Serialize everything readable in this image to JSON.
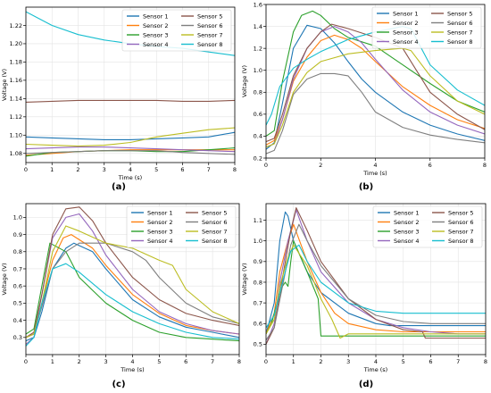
{
  "colors": [
    "#1f77b4",
    "#ff7f0e",
    "#2ca02c",
    "#9467bd",
    "#8c564b",
    "#7f7f7f",
    "#bcbd22",
    "#17becf"
  ],
  "chart_data": [
    {
      "type": "line",
      "panel_label": "(a)",
      "xlabel": "Time (s)",
      "ylabel": "Voltage (V)",
      "xlim": [
        0,
        8
      ],
      "ylim": [
        1.07,
        1.24
      ],
      "xticks": [
        0,
        1,
        2,
        3,
        4,
        5,
        6,
        7,
        8
      ],
      "yticks": [
        1.08,
        1.1,
        1.12,
        1.14,
        1.16,
        1.18,
        1.2,
        1.22
      ],
      "ytick_decimals": 2,
      "grid": true,
      "legend_position": "top-right",
      "series": [
        {
          "name": "Sensor 1",
          "x": [
            0,
            1,
            2,
            3,
            4,
            5,
            6,
            7,
            8
          ],
          "y": [
            1.098,
            1.097,
            1.096,
            1.095,
            1.095,
            1.096,
            1.097,
            1.098,
            1.103
          ]
        },
        {
          "name": "Sensor 2",
          "x": [
            0,
            1,
            2,
            3,
            4,
            5,
            6,
            7,
            8
          ],
          "y": [
            1.078,
            1.08,
            1.082,
            1.083,
            1.084,
            1.084,
            1.084,
            1.084,
            1.084
          ]
        },
        {
          "name": "Sensor 3",
          "x": [
            0,
            1,
            2,
            3,
            4,
            5,
            6,
            7,
            8
          ],
          "y": [
            1.077,
            1.081,
            1.082,
            1.083,
            1.083,
            1.082,
            1.082,
            1.084,
            1.086
          ]
        },
        {
          "name": "Sensor 4",
          "x": [
            0,
            1,
            2,
            3,
            4,
            5,
            6,
            7,
            8
          ],
          "y": [
            1.085,
            1.086,
            1.087,
            1.087,
            1.086,
            1.085,
            1.084,
            1.083,
            1.082
          ]
        },
        {
          "name": "Sensor 5",
          "x": [
            0,
            1,
            2,
            3,
            4,
            5,
            6,
            7,
            8
          ],
          "y": [
            1.136,
            1.137,
            1.138,
            1.138,
            1.138,
            1.138,
            1.137,
            1.137,
            1.138
          ]
        },
        {
          "name": "Sensor 6",
          "x": [
            0,
            1,
            2,
            3,
            4,
            5,
            6,
            7,
            8
          ],
          "y": [
            1.08,
            1.081,
            1.082,
            1.083,
            1.083,
            1.083,
            1.081,
            1.08,
            1.079
          ]
        },
        {
          "name": "Sensor 7",
          "x": [
            0,
            1,
            2,
            3,
            4,
            5,
            6,
            7,
            8
          ],
          "y": [
            1.09,
            1.089,
            1.088,
            1.089,
            1.092,
            1.098,
            1.102,
            1.106,
            1.108
          ]
        },
        {
          "name": "Sensor 8",
          "x": [
            0,
            1,
            2,
            3,
            4,
            5,
            6,
            7,
            8
          ],
          "y": [
            1.235,
            1.22,
            1.21,
            1.204,
            1.2,
            1.197,
            1.195,
            1.191,
            1.187
          ]
        }
      ]
    },
    {
      "type": "line",
      "panel_label": "(b)",
      "xlabel": "Time (s)",
      "ylabel": "Voltage (V)",
      "xlim": [
        0,
        8
      ],
      "ylim": [
        0.2,
        1.6
      ],
      "xticks": [
        0,
        2,
        4,
        6,
        8
      ],
      "yticks": [
        0.2,
        0.4,
        0.6,
        0.8,
        1.0,
        1.2,
        1.4,
        1.6
      ],
      "ytick_decimals": 1,
      "grid": true,
      "legend_position": "top-right",
      "series": [
        {
          "name": "Sensor 1",
          "x": [
            0,
            0.3,
            0.6,
            1,
            1.5,
            2,
            2.5,
            3,
            3.5,
            4,
            5,
            6,
            7,
            8
          ],
          "y": [
            0.28,
            0.34,
            0.7,
            1.2,
            1.41,
            1.38,
            1.25,
            1.08,
            0.92,
            0.8,
            0.62,
            0.5,
            0.42,
            0.36
          ]
        },
        {
          "name": "Sensor 2",
          "x": [
            0,
            0.3,
            0.6,
            1,
            1.5,
            2,
            2.5,
            3,
            3.5,
            4,
            5,
            6,
            7,
            8
          ],
          "y": [
            0.32,
            0.36,
            0.55,
            0.9,
            1.12,
            1.27,
            1.32,
            1.28,
            1.2,
            1.08,
            0.85,
            0.68,
            0.55,
            0.47
          ]
        },
        {
          "name": "Sensor 3",
          "x": [
            0,
            0.3,
            0.6,
            1,
            1.3,
            1.7,
            2,
            2.5,
            3,
            4,
            5,
            6,
            7,
            8
          ],
          "y": [
            0.4,
            0.45,
            0.9,
            1.35,
            1.5,
            1.54,
            1.5,
            1.38,
            1.3,
            1.22,
            1.05,
            0.88,
            0.72,
            0.62
          ]
        },
        {
          "name": "Sensor 4",
          "x": [
            0,
            0.3,
            0.6,
            1,
            1.5,
            2,
            2.5,
            3,
            3.5,
            4,
            5,
            6,
            7,
            8
          ],
          "y": [
            0.3,
            0.33,
            0.55,
            0.92,
            1.2,
            1.35,
            1.4,
            1.35,
            1.25,
            1.1,
            0.82,
            0.62,
            0.5,
            0.42
          ]
        },
        {
          "name": "Sensor 5",
          "x": [
            0,
            0.3,
            0.6,
            1,
            1.5,
            2,
            2.4,
            3,
            4,
            5,
            5.5,
            6,
            7,
            8
          ],
          "y": [
            0.35,
            0.38,
            0.6,
            0.95,
            1.2,
            1.35,
            1.42,
            1.38,
            1.3,
            1.2,
            1.0,
            0.8,
            0.6,
            0.46
          ]
        },
        {
          "name": "Sensor 6",
          "x": [
            0,
            0.3,
            0.6,
            1,
            1.5,
            2,
            2.5,
            3,
            3.5,
            4,
            5,
            6,
            7,
            8
          ],
          "y": [
            0.24,
            0.27,
            0.45,
            0.78,
            0.92,
            0.97,
            0.97,
            0.95,
            0.8,
            0.62,
            0.48,
            0.41,
            0.37,
            0.34
          ]
        },
        {
          "name": "Sensor 7",
          "x": [
            0,
            0.3,
            0.6,
            1,
            1.5,
            2,
            3,
            4,
            5,
            5.3,
            6,
            7,
            8
          ],
          "y": [
            0.3,
            0.33,
            0.5,
            0.8,
            0.98,
            1.08,
            1.15,
            1.18,
            1.2,
            1.18,
            0.95,
            0.72,
            0.6
          ]
        },
        {
          "name": "Sensor 8",
          "x": [
            0,
            0.2,
            0.5,
            1,
            1.5,
            2,
            3,
            4,
            5,
            5.3,
            6,
            7,
            8
          ],
          "y": [
            0.5,
            0.6,
            0.85,
            1.02,
            1.1,
            1.17,
            1.28,
            1.35,
            1.4,
            1.38,
            1.05,
            0.82,
            0.68
          ]
        }
      ]
    },
    {
      "type": "line",
      "panel_label": "(c)",
      "xlabel": "Time (s)",
      "ylabel": "Voltage (V)",
      "xlim": [
        0,
        8
      ],
      "ylim": [
        0.2,
        1.08
      ],
      "xticks": [
        0,
        1,
        2,
        3,
        4,
        5,
        6,
        7,
        8
      ],
      "yticks": [
        0.3,
        0.4,
        0.5,
        0.6,
        0.7,
        0.8,
        0.9,
        1.0
      ],
      "ytick_decimals": 1,
      "grid": true,
      "legend_position": "top-right",
      "series": [
        {
          "name": "Sensor 1",
          "x": [
            0,
            0.3,
            0.6,
            1,
            1.5,
            1.8,
            2.5,
            3,
            4,
            5,
            6,
            7,
            8
          ],
          "y": [
            0.28,
            0.3,
            0.45,
            0.7,
            0.82,
            0.85,
            0.8,
            0.7,
            0.52,
            0.42,
            0.36,
            0.33,
            0.3
          ]
        },
        {
          "name": "Sensor 2",
          "x": [
            0,
            0.3,
            0.6,
            1,
            1.4,
            1.7,
            2.5,
            3,
            4,
            5,
            6,
            7,
            8
          ],
          "y": [
            0.3,
            0.32,
            0.5,
            0.75,
            0.88,
            0.9,
            0.82,
            0.72,
            0.55,
            0.44,
            0.37,
            0.34,
            0.32
          ]
        },
        {
          "name": "Sensor 3",
          "x": [
            0,
            0.3,
            0.6,
            0.9,
            1.5,
            2,
            3,
            4,
            5,
            6,
            7,
            8
          ],
          "y": [
            0.32,
            0.35,
            0.6,
            0.85,
            0.8,
            0.65,
            0.5,
            0.4,
            0.33,
            0.3,
            0.29,
            0.28
          ]
        },
        {
          "name": "Sensor 4",
          "x": [
            0,
            0.3,
            0.6,
            1,
            1.5,
            2,
            2.5,
            3,
            4,
            5,
            6,
            7,
            8
          ],
          "y": [
            0.26,
            0.3,
            0.55,
            0.88,
            1.0,
            1.02,
            0.92,
            0.78,
            0.58,
            0.45,
            0.38,
            0.34,
            0.32
          ]
        },
        {
          "name": "Sensor 5",
          "x": [
            0,
            0.3,
            0.6,
            1,
            1.5,
            2,
            2.5,
            3,
            4,
            5,
            6,
            7,
            8
          ],
          "y": [
            0.3,
            0.33,
            0.55,
            0.9,
            1.05,
            1.06,
            0.98,
            0.85,
            0.65,
            0.52,
            0.44,
            0.4,
            0.37
          ]
        },
        {
          "name": "Sensor 6",
          "x": [
            0,
            0.3,
            0.6,
            1,
            1.5,
            2,
            3,
            4,
            4.5,
            5,
            6,
            7,
            8
          ],
          "y": [
            0.3,
            0.32,
            0.48,
            0.7,
            0.8,
            0.85,
            0.85,
            0.8,
            0.75,
            0.65,
            0.5,
            0.42,
            0.38
          ]
        },
        {
          "name": "Sensor 7",
          "x": [
            0,
            0.3,
            0.6,
            1,
            1.5,
            2,
            3,
            4,
            5,
            5.5,
            6,
            7,
            8
          ],
          "y": [
            0.3,
            0.32,
            0.5,
            0.8,
            0.95,
            0.92,
            0.85,
            0.82,
            0.75,
            0.72,
            0.58,
            0.45,
            0.38
          ]
        },
        {
          "name": "Sensor 8",
          "x": [
            0,
            0.3,
            0.6,
            1,
            1.5,
            2,
            3,
            4,
            5,
            6,
            7,
            8
          ],
          "y": [
            0.25,
            0.3,
            0.5,
            0.7,
            0.73,
            0.68,
            0.55,
            0.45,
            0.38,
            0.33,
            0.3,
            0.29
          ]
        }
      ]
    },
    {
      "type": "line",
      "panel_label": "(d)",
      "xlabel": "Time (s)",
      "ylabel": "Voltage (V)",
      "xlim": [
        0,
        8
      ],
      "ylim": [
        0.45,
        1.18
      ],
      "xticks": [
        0,
        1,
        2,
        3,
        4,
        5,
        6,
        7,
        8
      ],
      "yticks": [
        0.5,
        0.6,
        0.7,
        0.8,
        0.9,
        1.0,
        1.1
      ],
      "ytick_decimals": 1,
      "grid": true,
      "legend_position": "top-right",
      "series": [
        {
          "name": "Sensor 1",
          "x": [
            0,
            0.3,
            0.5,
            0.7,
            0.8,
            1.0,
            1.5,
            2,
            3,
            4,
            4.5,
            5,
            6,
            7,
            8
          ],
          "y": [
            0.55,
            0.7,
            1.0,
            1.14,
            1.12,
            1.0,
            0.85,
            0.75,
            0.65,
            0.6,
            0.59,
            0.59,
            0.59,
            0.59,
            0.59
          ]
        },
        {
          "name": "Sensor 2",
          "x": [
            0,
            0.3,
            0.5,
            0.8,
            1.0,
            1.5,
            2,
            2.5,
            3,
            4,
            5,
            6,
            7,
            8
          ],
          "y": [
            0.55,
            0.65,
            0.85,
            1.0,
            1.08,
            0.9,
            0.75,
            0.65,
            0.6,
            0.57,
            0.56,
            0.56,
            0.56,
            0.56
          ]
        },
        {
          "name": "Sensor 3",
          "x": [
            0,
            0.2,
            0.4,
            0.6,
            0.7,
            0.8,
            0.9,
            1.0,
            1.5,
            1.9,
            2.0,
            3,
            4,
            5,
            6,
            7,
            8
          ],
          "y": [
            0.55,
            0.6,
            0.7,
            0.78,
            0.8,
            0.78,
            0.9,
            1.0,
            0.85,
            0.72,
            0.54,
            0.54,
            0.54,
            0.54,
            0.54,
            0.54,
            0.54
          ]
        },
        {
          "name": "Sensor 4",
          "x": [
            0,
            0.3,
            0.5,
            0.8,
            1.0,
            1.1,
            1.5,
            2,
            3,
            4,
            5,
            6,
            7,
            8
          ],
          "y": [
            0.5,
            0.6,
            0.8,
            1.0,
            1.1,
            1.15,
            1.0,
            0.85,
            0.7,
            0.62,
            0.58,
            0.56,
            0.55,
            0.55
          ]
        },
        {
          "name": "Sensor 5",
          "x": [
            0,
            0.3,
            0.6,
            0.9,
            1.1,
            1.5,
            2,
            3,
            4,
            5,
            5.7,
            5.8,
            6,
            7,
            8
          ],
          "y": [
            0.5,
            0.58,
            0.82,
            1.05,
            1.16,
            1.05,
            0.9,
            0.72,
            0.62,
            0.57,
            0.56,
            0.53,
            0.53,
            0.53,
            0.53
          ]
        },
        {
          "name": "Sensor 6",
          "x": [
            0,
            0.3,
            0.6,
            0.9,
            1.2,
            1.5,
            2,
            3,
            4,
            5,
            6,
            7,
            8
          ],
          "y": [
            0.52,
            0.58,
            0.78,
            0.98,
            1.08,
            1.0,
            0.88,
            0.72,
            0.64,
            0.61,
            0.6,
            0.6,
            0.6
          ]
        },
        {
          "name": "Sensor 7",
          "x": [
            0,
            0.3,
            0.5,
            0.8,
            1.0,
            1.5,
            2,
            2.4,
            2.7,
            3,
            4,
            5,
            6,
            7,
            8
          ],
          "y": [
            0.55,
            0.62,
            0.78,
            0.92,
            0.98,
            0.88,
            0.72,
            0.62,
            0.53,
            0.55,
            0.55,
            0.55,
            0.55,
            0.55,
            0.55
          ]
        },
        {
          "name": "Sensor 8",
          "x": [
            0,
            0.3,
            0.6,
            0.9,
            1.2,
            1.5,
            2,
            3,
            4,
            5,
            6,
            7,
            8
          ],
          "y": [
            0.58,
            0.64,
            0.8,
            0.95,
            0.98,
            0.9,
            0.8,
            0.7,
            0.66,
            0.65,
            0.65,
            0.65,
            0.65
          ]
        }
      ]
    }
  ]
}
